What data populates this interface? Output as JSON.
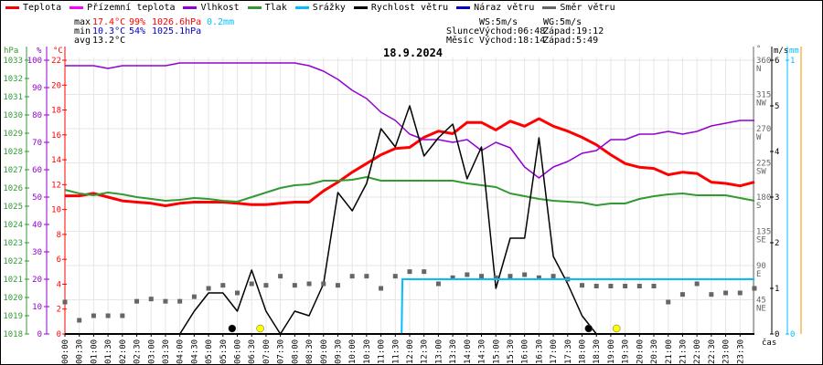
{
  "legend": [
    {
      "label": "Teplota",
      "color": "#ff0000"
    },
    {
      "label": "Přízemní teplota",
      "color": "#ff00ff"
    },
    {
      "label": "Vlhkost",
      "color": "#9400d3"
    },
    {
      "label": "Tlak",
      "color": "#339933"
    },
    {
      "label": "Srážky",
      "color": "#00bfff"
    },
    {
      "label": "Rychlost větru",
      "color": "#000000"
    },
    {
      "label": "Náraz větru",
      "color": "#0000cc"
    },
    {
      "label": "Směr větru",
      "color": "#666666"
    }
  ],
  "stats": {
    "max_label": "max",
    "min_label": "min",
    "avg_label": "avg",
    "max_temp": "17.4°C",
    "max_hum": "99%",
    "max_press": "1026.6hPa",
    "max_rain": "0.2mm",
    "min_temp": "10.3°C",
    "min_hum": "54%",
    "min_press": "1025.1hPa",
    "avg_temp": "13.2°C"
  },
  "sun_moon": {
    "ws": "WS:5m/s",
    "wg": "WG:5m/s",
    "sun_label": "Slunce",
    "sun_rise": "Východ:06:48",
    "sun_set": "Západ:19:12",
    "moon_label": "Měsíc",
    "moon_rise": "Východ:18:14",
    "moon_set": "Západ:5:49"
  },
  "colors": {
    "temp": "#ff0000",
    "hum": "#9400d3",
    "press": "#339933",
    "rain": "#00bfff",
    "wind": "#000000",
    "dir": "#666666",
    "max": "#ff0000",
    "min": "#0000cc",
    "orange": "#ff8c00"
  },
  "chart_data": {
    "type": "line",
    "title": "18.9.2024",
    "xlabel": "čas",
    "x_hours_step": 0.5,
    "x_ticks": [
      "00:00",
      "00:30",
      "01:00",
      "01:30",
      "02:00",
      "02:30",
      "03:00",
      "03:30",
      "04:00",
      "04:30",
      "05:00",
      "05:30",
      "06:00",
      "06:30",
      "07:00",
      "07:30",
      "08:00",
      "08:30",
      "09:00",
      "09:30",
      "10:00",
      "10:30",
      "11:00",
      "11:30",
      "12:00",
      "12:30",
      "13:00",
      "13:30",
      "14:00",
      "14:30",
      "15:00",
      "15:30",
      "16:00",
      "16:30",
      "17:00",
      "17:30",
      "18:00",
      "18:30",
      "19:00",
      "19:30",
      "20:00",
      "20:30",
      "21:00",
      "21:30",
      "22:00",
      "22:30",
      "23:00",
      "23:30"
    ],
    "axes": {
      "press": {
        "unit": "hPa",
        "range": [
          1018,
          1033
        ],
        "ticks": [
          "1018",
          "1019",
          "1020",
          "1021",
          "1022",
          "1023",
          "1024",
          "1025",
          "1026",
          "1027",
          "1028",
          "1029",
          "1030",
          "1031",
          "1032",
          "1033"
        ]
      },
      "hum": {
        "unit": "%",
        "range": [
          0,
          100
        ],
        "ticks": [
          "0",
          "10",
          "20",
          "30",
          "40",
          "50",
          "60",
          "70",
          "80",
          "90",
          "100"
        ]
      },
      "temp": {
        "unit": "°C",
        "range": [
          0,
          22
        ],
        "ticks": [
          "0",
          "2",
          "4",
          "6",
          "8",
          "10",
          "12",
          "14",
          "16",
          "18",
          "20",
          "22"
        ]
      },
      "dir": {
        "unit": "°",
        "range": [
          0,
          360
        ],
        "ticks": [
          "45",
          "90",
          "135",
          "180",
          "225",
          "270",
          "315",
          "360"
        ],
        "dir_names": [
          "NE",
          "E",
          "SE",
          "S",
          "SW",
          "W",
          "NW",
          "N"
        ]
      },
      "wind": {
        "unit": "m/s",
        "range": [
          0,
          6
        ],
        "ticks": [
          "0",
          "1",
          "2",
          "3",
          "4",
          "5",
          "6"
        ]
      },
      "rain": {
        "unit": "mm",
        "range": [
          0,
          1
        ],
        "ticks": [
          "0",
          "1"
        ]
      }
    },
    "series": [
      {
        "name": "Teplota",
        "axis": "temp",
        "values": [
          11.1,
          11.1,
          11.3,
          11.0,
          10.7,
          10.6,
          10.5,
          10.3,
          10.5,
          10.6,
          10.6,
          10.6,
          10.5,
          10.4,
          10.4,
          10.5,
          10.6,
          10.6,
          11.5,
          12.2,
          13.0,
          13.7,
          14.4,
          14.9,
          15.0,
          15.8,
          16.3,
          16.1,
          17.0,
          17.0,
          16.4,
          17.1,
          16.7,
          17.3,
          16.7,
          16.3,
          15.8,
          15.2,
          14.4,
          13.7,
          13.4,
          13.3,
          12.8,
          13.0,
          12.9,
          12.2,
          12.1,
          11.9,
          12.2
        ]
      },
      {
        "name": "Vlhkost",
        "axis": "hum",
        "values": [
          98,
          98,
          98,
          97,
          98,
          98,
          98,
          98,
          99,
          99,
          99,
          99,
          99,
          99,
          99,
          99,
          99,
          98,
          96,
          93,
          89,
          86,
          81,
          78,
          73,
          71,
          71,
          70,
          71,
          67,
          70,
          68,
          61,
          57,
          61,
          63,
          66,
          67,
          71,
          71,
          73,
          73,
          74,
          73,
          74,
          76,
          77,
          78,
          78
        ]
      },
      {
        "name": "Tlak",
        "axis": "press",
        "values": [
          1025.9,
          1025.7,
          1025.6,
          1025.75,
          1025.65,
          1025.5,
          1025.4,
          1025.3,
          1025.35,
          1025.45,
          1025.4,
          1025.3,
          1025.25,
          1025.5,
          1025.75,
          1026.0,
          1026.15,
          1026.2,
          1026.4,
          1026.4,
          1026.45,
          1026.6,
          1026.4,
          1026.4,
          1026.4,
          1026.4,
          1026.4,
          1026.4,
          1026.25,
          1026.15,
          1026.05,
          1025.7,
          1025.55,
          1025.4,
          1025.3,
          1025.25,
          1025.2,
          1025.05,
          1025.15,
          1025.15,
          1025.4,
          1025.55,
          1025.65,
          1025.7,
          1025.6,
          1025.6,
          1025.6,
          1025.45,
          1025.3
        ]
      },
      {
        "name": "Rychlost větru",
        "axis": "wind",
        "values": [
          0,
          0,
          0,
          0,
          0,
          0,
          0,
          0,
          0,
          0.5,
          0.9,
          0.9,
          0.5,
          1.4,
          0.5,
          0,
          0.5,
          0.4,
          1.1,
          3.1,
          2.7,
          3.3,
          4.5,
          4.1,
          5.0,
          3.9,
          4.3,
          4.6,
          3.4,
          4.1,
          1.0,
          2.1,
          2.1,
          4.3,
          1.7,
          1.1,
          0.4,
          0,
          0,
          0,
          0,
          0,
          0,
          0,
          0,
          0,
          0,
          0,
          0
        ]
      },
      {
        "name": "Směr větru",
        "axis": "dir",
        "points": true,
        "values": [
          42,
          18,
          24,
          24,
          24,
          43,
          46,
          43,
          43,
          49,
          60,
          64,
          54,
          66,
          64,
          76,
          64,
          66,
          66,
          64,
          76,
          76,
          60,
          76,
          82,
          82,
          66,
          74,
          78,
          76,
          74,
          76,
          78,
          74,
          76,
          72,
          64,
          63,
          63,
          63,
          63,
          63,
          42,
          52,
          66,
          52,
          54,
          54,
          60
        ]
      }
    ],
    "rain_steps": [
      [
        0,
        0
      ],
      [
        11.72,
        0
      ],
      [
        11.75,
        0.2
      ],
      [
        24,
        0.2
      ]
    ],
    "events": [
      {
        "name": "moonset",
        "hour": 5.82,
        "color": "#000000"
      },
      {
        "name": "sunrise",
        "hour": 6.8,
        "color": "#ffff00"
      },
      {
        "name": "moonrise",
        "hour": 18.23,
        "color": "#000000"
      },
      {
        "name": "sunset",
        "hour": 19.2,
        "color": "#ffff00"
      }
    ]
  }
}
